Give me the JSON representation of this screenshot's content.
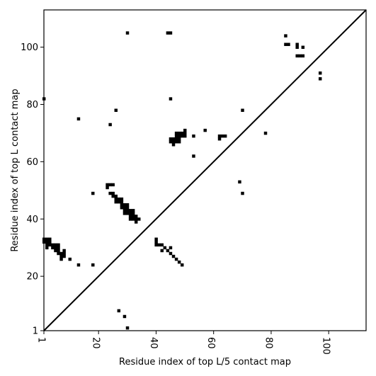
{
  "chart_data": {
    "type": "scatter",
    "title": "",
    "xlabel": "Residue index of top L/5 contact map",
    "ylabel": "Residue index of top L contact map",
    "xlim": [
      1,
      113
    ],
    "ylim": [
      1,
      113
    ],
    "xticks": [
      1,
      20,
      40,
      60,
      80,
      100
    ],
    "yticks": [
      1,
      20,
      40,
      60,
      80,
      100
    ],
    "x_tick_labels": [
      "1",
      "20",
      "40",
      "60",
      "80",
      "100"
    ],
    "y_tick_labels": [
      "1",
      "20",
      "40",
      "60",
      "80",
      "100"
    ],
    "diagonal": true,
    "grid": false,
    "marker_color": "#000000",
    "points": [
      [
        1,
        32
      ],
      [
        1,
        33
      ],
      [
        2,
        31
      ],
      [
        2,
        32
      ],
      [
        2,
        33
      ],
      [
        3,
        31
      ],
      [
        3,
        32
      ],
      [
        3,
        33
      ],
      [
        2,
        30
      ],
      [
        4,
        31
      ],
      [
        4,
        30
      ],
      [
        5,
        30
      ],
      [
        5,
        29
      ],
      [
        5,
        31
      ],
      [
        6,
        29
      ],
      [
        6,
        28
      ],
      [
        6,
        30
      ],
      [
        6,
        31
      ],
      [
        7,
        28
      ],
      [
        7,
        27
      ],
      [
        8,
        27
      ],
      [
        8,
        28
      ],
      [
        8,
        29
      ],
      [
        7,
        26
      ],
      [
        10,
        26
      ],
      [
        13,
        24
      ],
      [
        18,
        24
      ],
      [
        1,
        82
      ],
      [
        13,
        75
      ],
      [
        18,
        49
      ],
      [
        23,
        51
      ],
      [
        23,
        52
      ],
      [
        24,
        49
      ],
      [
        24,
        52
      ],
      [
        25,
        48
      ],
      [
        25,
        49
      ],
      [
        25,
        52
      ],
      [
        26,
        46
      ],
      [
        26,
        47
      ],
      [
        26,
        48
      ],
      [
        27,
        46
      ],
      [
        27,
        47
      ],
      [
        28,
        44
      ],
      [
        28,
        45
      ],
      [
        28,
        46
      ],
      [
        28,
        47
      ],
      [
        29,
        42
      ],
      [
        29,
        43
      ],
      [
        29,
        44
      ],
      [
        29,
        45
      ],
      [
        30,
        42
      ],
      [
        30,
        43
      ],
      [
        30,
        44
      ],
      [
        30,
        45
      ],
      [
        31,
        40
      ],
      [
        31,
        41
      ],
      [
        31,
        42
      ],
      [
        31,
        43
      ],
      [
        32,
        40
      ],
      [
        32,
        41
      ],
      [
        32,
        42
      ],
      [
        32,
        43
      ],
      [
        33,
        39
      ],
      [
        33,
        40
      ],
      [
        33,
        41
      ],
      [
        34,
        40
      ],
      [
        24,
        73
      ],
      [
        26,
        78
      ],
      [
        30,
        105
      ],
      [
        27,
        8
      ],
      [
        29,
        6
      ],
      [
        30,
        2
      ],
      [
        40,
        31
      ],
      [
        40,
        32
      ],
      [
        40,
        33
      ],
      [
        41,
        31
      ],
      [
        42,
        29
      ],
      [
        42,
        31
      ],
      [
        43,
        30
      ],
      [
        44,
        29
      ],
      [
        45,
        28
      ],
      [
        45,
        30
      ],
      [
        46,
        27
      ],
      [
        47,
        26
      ],
      [
        48,
        25
      ],
      [
        49,
        24
      ],
      [
        45,
        82
      ],
      [
        44,
        105
      ],
      [
        45,
        105
      ],
      [
        45,
        67
      ],
      [
        45,
        68
      ],
      [
        46,
        66
      ],
      [
        46,
        67
      ],
      [
        46,
        68
      ],
      [
        47,
        67
      ],
      [
        47,
        68
      ],
      [
        47,
        69
      ],
      [
        47,
        70
      ],
      [
        48,
        67
      ],
      [
        48,
        68
      ],
      [
        48,
        69
      ],
      [
        48,
        70
      ],
      [
        49,
        69
      ],
      [
        49,
        70
      ],
      [
        50,
        69
      ],
      [
        50,
        70
      ],
      [
        50,
        71
      ],
      [
        53,
        62
      ],
      [
        53,
        69
      ],
      [
        57,
        71
      ],
      [
        62,
        68
      ],
      [
        62,
        69
      ],
      [
        63,
        69
      ],
      [
        64,
        69
      ],
      [
        69,
        53
      ],
      [
        70,
        49
      ],
      [
        70,
        78
      ],
      [
        78,
        70
      ],
      [
        85,
        104
      ],
      [
        85,
        101
      ],
      [
        86,
        101
      ],
      [
        89,
        100
      ],
      [
        89,
        101
      ],
      [
        89,
        97
      ],
      [
        90,
        97
      ],
      [
        91,
        97
      ],
      [
        91,
        100
      ],
      [
        97,
        91
      ],
      [
        97,
        89
      ]
    ]
  }
}
